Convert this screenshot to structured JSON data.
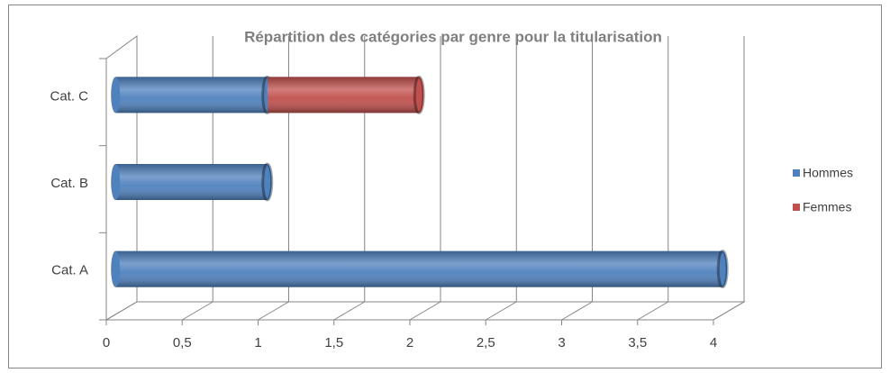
{
  "chart_data": {
    "type": "bar",
    "orientation": "horizontal",
    "stacked": true,
    "title": "Répartition des catégories par genre pour la titularisation",
    "categories": [
      "Cat. A",
      "Cat. B",
      "Cat. C"
    ],
    "series": [
      {
        "name": "Hommes",
        "color": "#4f81bd",
        "values": [
          4,
          1,
          1
        ]
      },
      {
        "name": "Femmes",
        "color": "#c0504d",
        "values": [
          0,
          0,
          1
        ]
      }
    ],
    "xlim": [
      0,
      4
    ],
    "xticks": [
      0,
      {
        "value": 0.5,
        "label": "0,5"
      },
      1,
      {
        "value": 1.5,
        "label": "1,5"
      },
      2,
      {
        "value": 2.5,
        "label": "2,5"
      },
      3,
      {
        "value": 3.5,
        "label": "3,5"
      },
      4
    ],
    "grid": true,
    "legend": "right"
  }
}
